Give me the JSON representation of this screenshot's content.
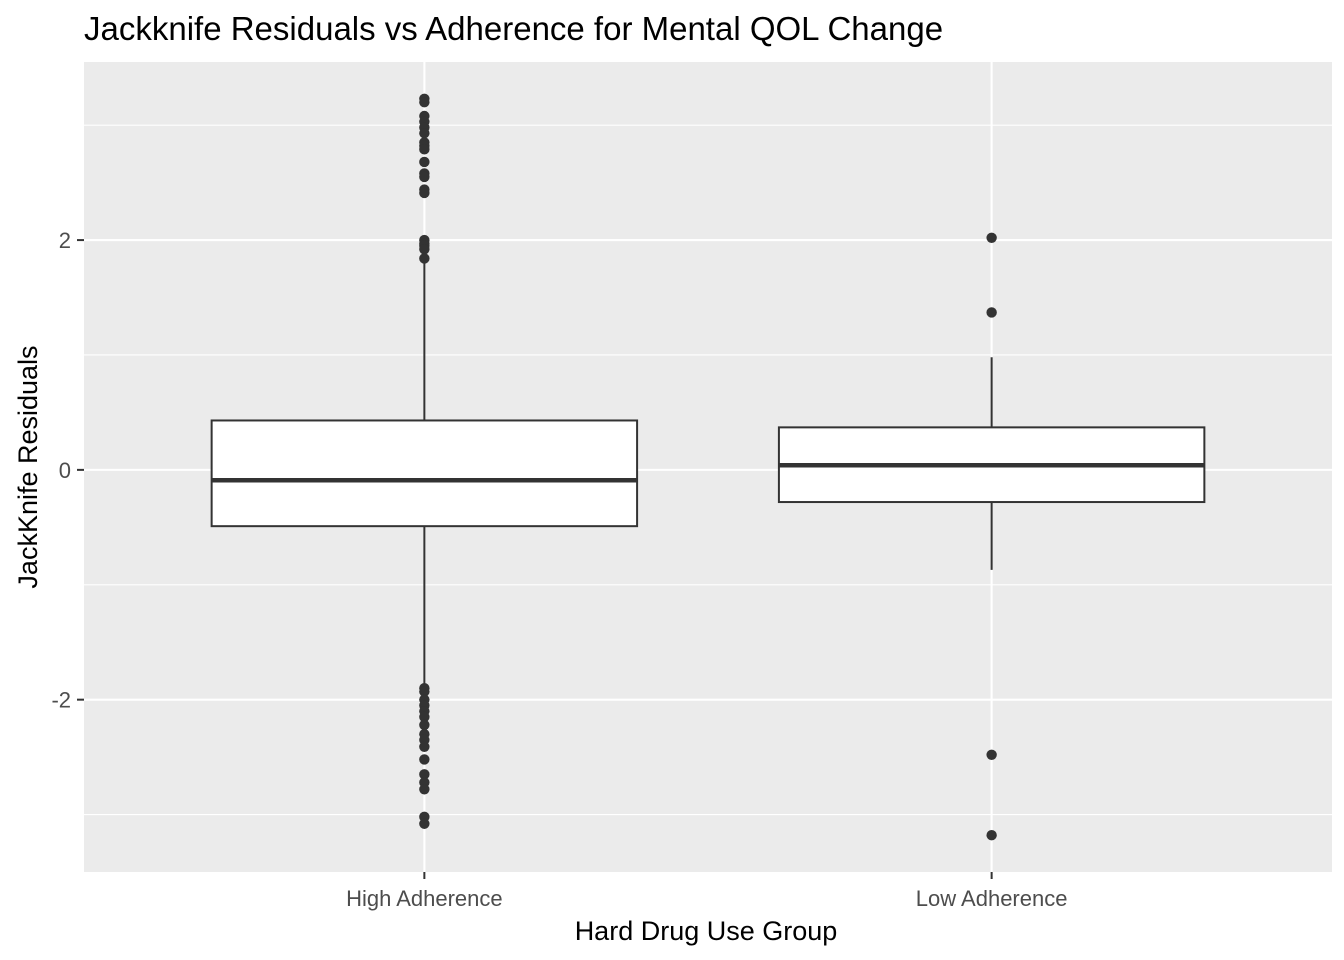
{
  "chart_data": {
    "type": "boxplot",
    "title": "Jackknife Residuals vs Adherence for Mental QOL Change",
    "xlabel": "Hard Drug Use Group",
    "ylabel": "JackKnife Residuals",
    "categories": [
      "High Adherence",
      "Low Adherence"
    ],
    "ylim": [
      -3.5,
      3.55
    ],
    "y_ticks": [
      -2,
      0,
      2
    ],
    "y_tick_labels": [
      "-2",
      "0",
      "2"
    ],
    "grid": true,
    "legend": "none",
    "boxes": [
      {
        "category": "High Adherence",
        "q1": -0.49,
        "median": -0.09,
        "q3": 0.43,
        "whisker_low": -1.87,
        "whisker_high": 1.83,
        "outliers": [
          3.23,
          3.2,
          3.08,
          3.03,
          2.98,
          2.93,
          2.85,
          2.82,
          2.79,
          2.68,
          2.58,
          2.55,
          2.44,
          2.41,
          2.0,
          1.97,
          1.95,
          1.92,
          1.84,
          -1.9,
          -1.93,
          -2.0,
          -2.05,
          -2.1,
          -2.15,
          -2.22,
          -2.3,
          -2.35,
          -2.41,
          -2.52,
          -2.65,
          -2.72,
          -2.78,
          -3.02,
          -3.08
        ]
      },
      {
        "category": "Low Adherence",
        "q1": -0.28,
        "median": 0.04,
        "q3": 0.37,
        "whisker_low": -0.87,
        "whisker_high": 0.98,
        "outliers": [
          2.02,
          1.37,
          -2.48,
          -3.18
        ]
      }
    ],
    "colors": {
      "panel": "#EBEBEB",
      "grid_major": "#FFFFFF",
      "box_fill": "#FFFFFF",
      "box_line": "#333333",
      "outlier": "#333333",
      "tick_text": "#4D4D4D",
      "tick_mark": "#333333"
    }
  }
}
